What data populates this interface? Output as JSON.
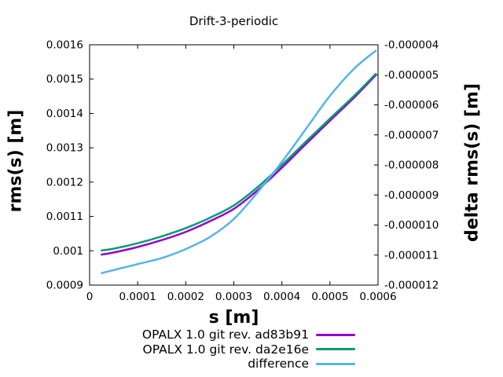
{
  "title": "Drift-3-periodic",
  "legend": [
    {
      "label": "OPALX 1.0 git rev. ad83b91",
      "color": "#9400d3"
    },
    {
      "label": "OPALX 1.0 git rev. da2e16e",
      "color": "#009e73"
    },
    {
      "label": "difference",
      "color": "#56b4e9"
    }
  ],
  "colors": {
    "series1": "#9400d3",
    "series2": "#009e73",
    "difference": "#56b4e9",
    "border": "#000000",
    "background": "#ffffff"
  },
  "chart_data": {
    "type": "line",
    "title": "Drift-3-periodic",
    "xlabel": "s [m]",
    "ylabel_left": "rms(s) [m]",
    "ylabel_right": "delta rms(s) [m]",
    "xlim": [
      0,
      0.0006
    ],
    "ylim_left": [
      0.0009,
      0.0016
    ],
    "ylim_right": [
      -1.2e-05,
      -4e-06
    ],
    "grid": false,
    "legend_position": "below-right",
    "x_ticks": {
      "values": [
        0,
        0.0001,
        0.0002,
        0.0003,
        0.0004,
        0.0005,
        0.0006
      ],
      "labels": [
        "0",
        "0.0001",
        "0.0002",
        "0.0003",
        "0.0004",
        "0.0005",
        "0.0006"
      ]
    },
    "y_left_ticks": {
      "values": [
        0.0009,
        0.001,
        0.0011,
        0.0012,
        0.0013,
        0.0014,
        0.0015,
        0.0016
      ],
      "labels": [
        "0.0009",
        "0.001",
        "0.0011",
        "0.0012",
        "0.0013",
        "0.0014",
        "0.0015",
        "0.0016"
      ]
    },
    "y_right_ticks": {
      "values": [
        -1.2e-05,
        -1.1e-05,
        -1e-05,
        -9e-06,
        -8e-06,
        -7e-06,
        -6e-06,
        -5e-06,
        -4e-06
      ],
      "labels": [
        "-0.000012",
        "-0.000011",
        "-0.000010",
        "-0.000009",
        "-0.000008",
        "-0.000007",
        "-0.000006",
        "-0.000005",
        "-0.000004"
      ]
    },
    "x": [
      2.5e-05,
      5e-05,
      0.0001,
      0.00015,
      0.0002,
      0.00025,
      0.0003,
      0.00035,
      0.0004,
      0.00045,
      0.0005,
      0.00055,
      0.000595
    ],
    "series": [
      {
        "name": "OPALX 1.0 git rev. ad83b91",
        "axis": "left",
        "color": "#9400d3",
        "values": [
          0.000989,
          0.000995,
          0.001011,
          0.001031,
          0.001055,
          0.001086,
          0.001122,
          0.001177,
          0.001242,
          0.001311,
          0.001379,
          0.001446,
          0.001511
        ]
      },
      {
        "name": "OPALX 1.0 git rev. da2e16e",
        "axis": "left",
        "color": "#009e73",
        "values": [
          0.001001,
          0.001006,
          0.001022,
          0.001042,
          0.001066,
          0.001096,
          0.001132,
          0.001186,
          0.00125,
          0.001318,
          0.001385,
          0.001451,
          0.001515
        ]
      },
      {
        "name": "difference",
        "axis": "right",
        "color": "#56b4e9",
        "values": [
          -1.16e-05,
          -1.15e-05,
          -1.13e-05,
          -1.11e-05,
          -1.08e-05,
          -1.04e-05,
          -9.8e-06,
          -8.9e-06,
          -7.9e-06,
          -6.8e-06,
          -5.7e-06,
          -4.8e-06,
          -4.2e-06
        ]
      }
    ]
  }
}
